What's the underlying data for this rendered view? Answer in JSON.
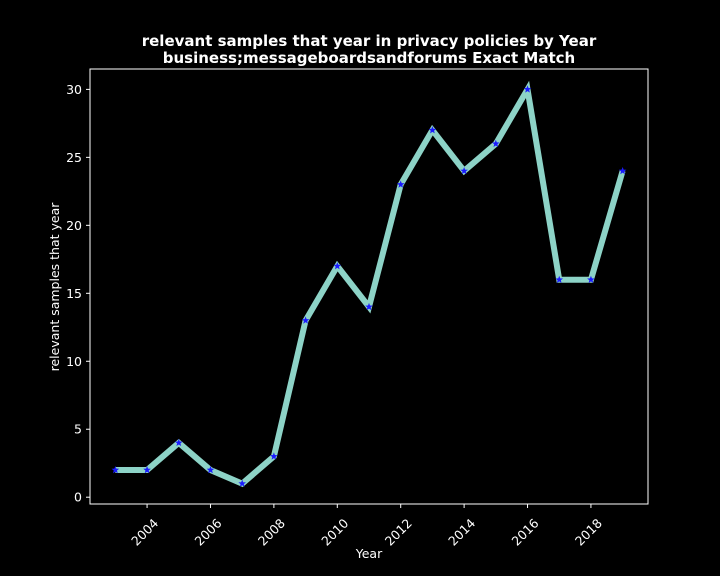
{
  "chart_data": {
    "type": "line",
    "title": "relevant samples that year in privacy policies by Year",
    "subtitle": "business;messageboardsandforums Exact Match",
    "xlabel": "Year",
    "ylabel": "relevant samples that year",
    "x": [
      2003,
      2004,
      2005,
      2006,
      2007,
      2008,
      2009,
      2010,
      2011,
      2012,
      2013,
      2014,
      2015,
      2016,
      2017,
      2018,
      2019
    ],
    "series": [
      {
        "values": [
          2,
          2,
          4,
          2,
          1,
          3,
          13,
          17,
          14,
          23,
          27,
          24,
          26,
          30,
          16,
          16,
          24
        ],
        "line_color": "#8dd3c7",
        "marker": "star",
        "marker_color": "#1a1aff"
      }
    ],
    "xticks": [
      2004,
      2006,
      2008,
      2010,
      2012,
      2014,
      2016,
      2018
    ],
    "yticks": [
      0,
      5,
      10,
      15,
      20,
      25,
      30
    ],
    "xlim": [
      2002.2,
      2019.8
    ],
    "ylim": [
      -0.5,
      31.5
    ],
    "grid": false,
    "background": "#000000",
    "text_color": "#ffffff"
  }
}
